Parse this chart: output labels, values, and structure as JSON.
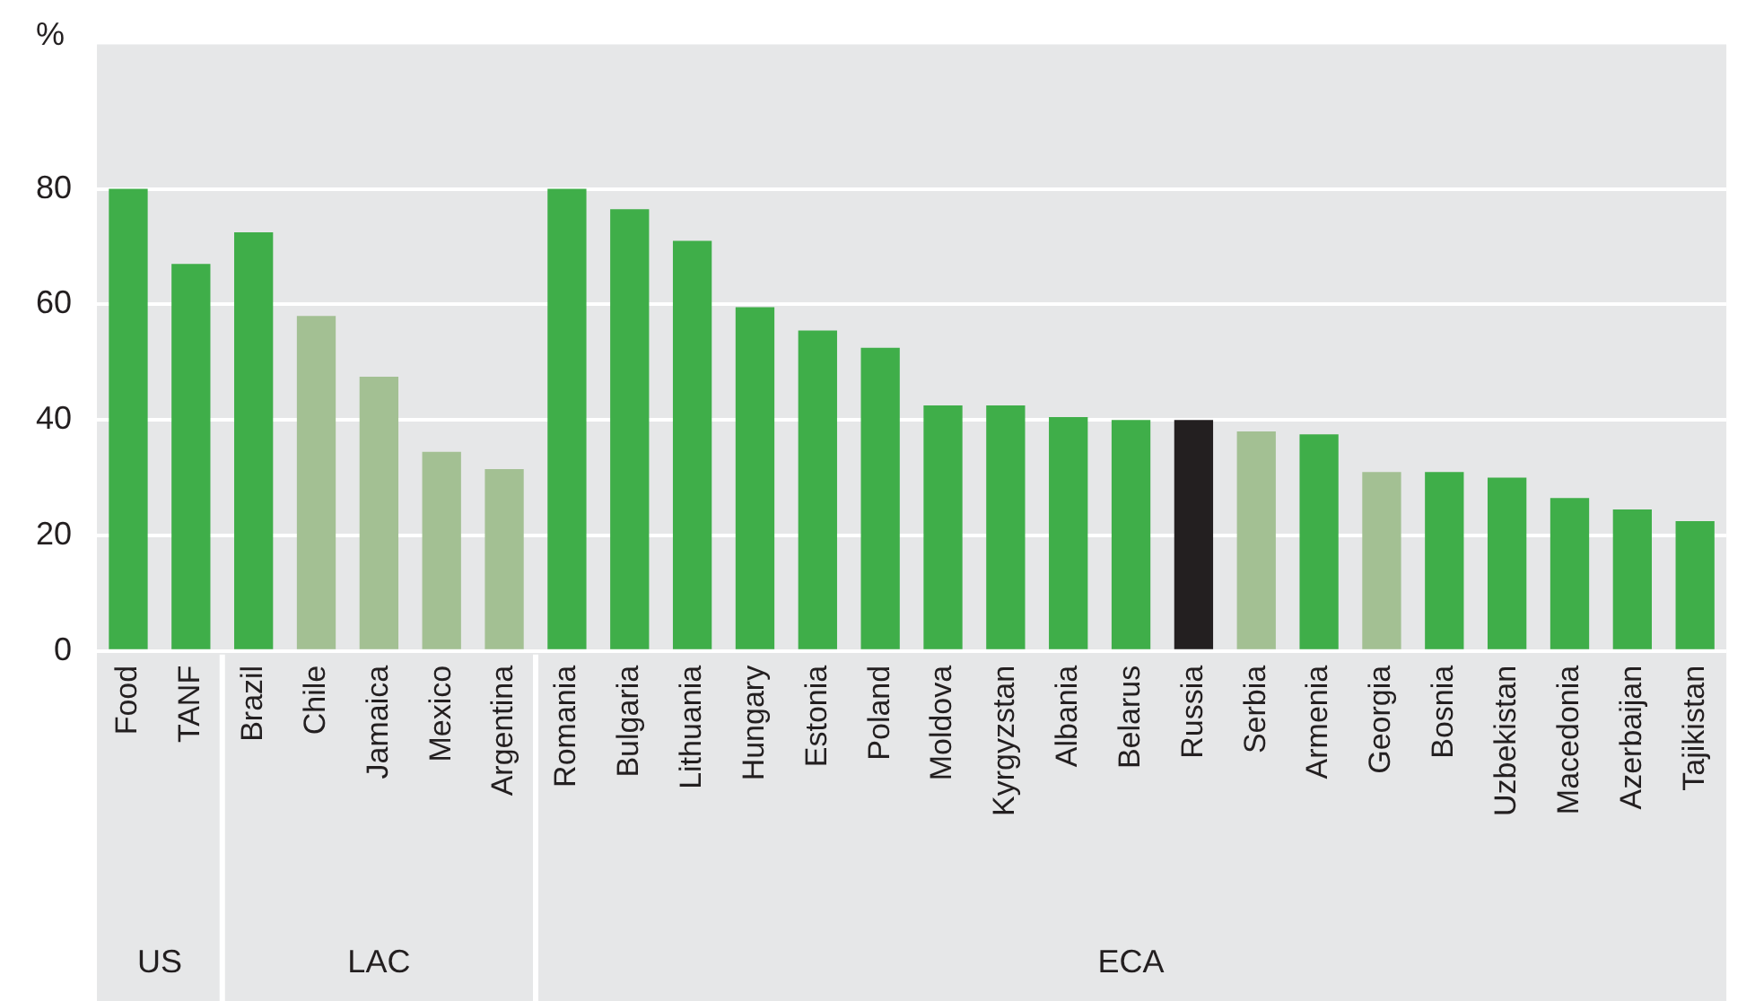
{
  "chart_data": {
    "type": "bar",
    "ylabel": "%",
    "categories": [
      "Food",
      "TANF",
      "Brazil",
      "Chile",
      "Jamaica",
      "Mexico",
      "Argentina",
      "Romania",
      "Bulgaria",
      "Lithuania",
      "Hungary",
      "Estonia",
      "Poland",
      "Moldova",
      "Kyrgyzstan",
      "Albania",
      "Belarus",
      "Russia",
      "Serbia",
      "Armenia",
      "Georgia",
      "Bosnia",
      "Uzbekistan",
      "Macedonia",
      "Azerbaijan",
      "Tajikistan"
    ],
    "values": [
      80,
      67,
      72.5,
      58,
      47.5,
      34.5,
      31.5,
      80,
      76.5,
      71,
      59.5,
      55.5,
      52.5,
      42.5,
      42.5,
      40.5,
      40,
      40,
      38,
      37.5,
      31,
      31,
      30,
      26.5,
      24.5,
      22.5
    ],
    "colors": [
      "#3fae49",
      "#3fae49",
      "#3fae49",
      "#a3c093",
      "#a3c093",
      "#a3c093",
      "#a3c093",
      "#3fae49",
      "#3fae49",
      "#3fae49",
      "#3fae49",
      "#3fae49",
      "#3fae49",
      "#3fae49",
      "#3fae49",
      "#3fae49",
      "#3fae49",
      "#231f20",
      "#a3c093",
      "#3fae49",
      "#a3c093",
      "#3fae49",
      "#3fae49",
      "#3fae49",
      "#3fae49",
      "#3fae49"
    ],
    "ylim": [
      0,
      105
    ],
    "yticks": [
      0,
      20,
      40,
      60,
      80
    ],
    "grid": "y",
    "legend": false,
    "annotations": [
      "US",
      "LAC",
      "ECA"
    ]
  }
}
